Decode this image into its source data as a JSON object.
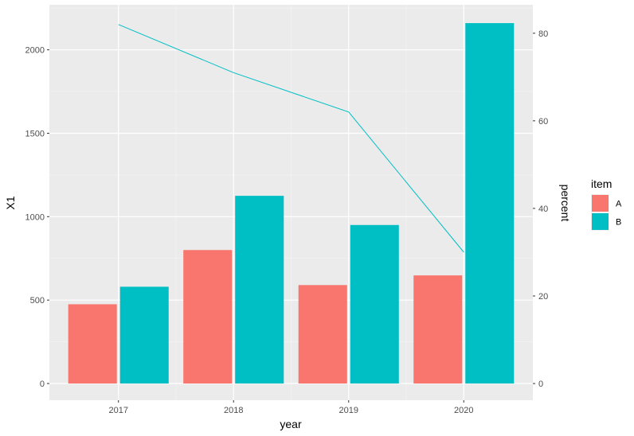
{
  "chart_data": {
    "type": "bar",
    "categories": [
      "2017",
      "2018",
      "2019",
      "2020"
    ],
    "series": [
      {
        "name": "A",
        "values": [
          475,
          800,
          590,
          648
        ],
        "color": "#F8766D"
      },
      {
        "name": "B",
        "values": [
          580,
          1125,
          950,
          2160
        ],
        "color": "#00BFC4"
      }
    ],
    "line_series": {
      "values": [
        82,
        71,
        62,
        30
      ],
      "color": "#00BFC4",
      "axis": "right"
    },
    "xlabel": "year",
    "ylabel": "X1",
    "y2label": "percent",
    "ylim": [
      -100,
      2270
    ],
    "y2lim": [
      -3.8,
      86.5
    ],
    "yticks": [
      0,
      500,
      1000,
      1500,
      2000
    ],
    "y2ticks": [
      0,
      20,
      40,
      60,
      80
    ],
    "legend": {
      "title": "item",
      "position": "right",
      "entries": [
        "A",
        "B"
      ]
    },
    "grid": true,
    "panel_background": "#EBEBEB"
  }
}
